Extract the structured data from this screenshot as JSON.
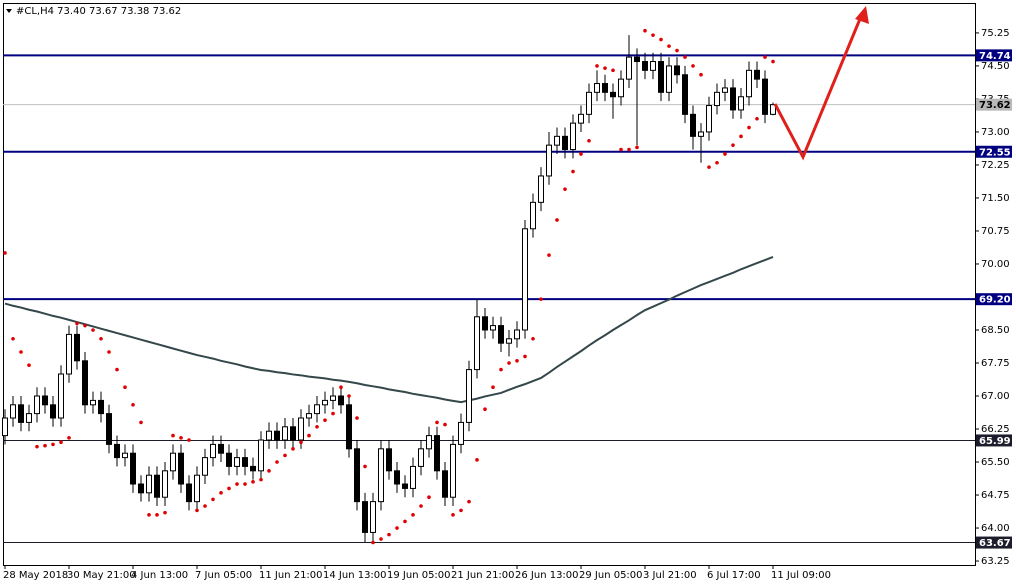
{
  "chart_data": {
    "type": "candlestick",
    "title": "#CL,H4 73.40 73.67 73.38 73.62",
    "categories": [
      "28 May 2018",
      null,
      null,
      null,
      null,
      null,
      null,
      null,
      "30 May 21:00",
      null,
      null,
      null,
      null,
      null,
      null,
      null,
      "4 Jun 13:00",
      null,
      null,
      null,
      null,
      null,
      null,
      null,
      "7 Jun 05:00",
      null,
      null,
      null,
      null,
      null,
      null,
      null,
      "11 Jun 21:00",
      null,
      null,
      null,
      null,
      null,
      null,
      null,
      "14 Jun 13:00",
      null,
      null,
      null,
      null,
      null,
      null,
      null,
      "19 Jun 05:00",
      null,
      null,
      null,
      null,
      null,
      null,
      null,
      "21 Jun 21:00",
      null,
      null,
      null,
      null,
      null,
      null,
      null,
      "26 Jun 13:00",
      null,
      null,
      null,
      null,
      null,
      null,
      null,
      "29 Jun 05:00",
      null,
      null,
      null,
      null,
      null,
      null,
      null,
      "3 Jul 21:00",
      null,
      null,
      null,
      null,
      null,
      null,
      null,
      "6 Jul 17:00",
      null,
      null,
      null,
      null,
      null,
      null,
      null,
      "11 Jul 09:00"
    ],
    "open": [
      66.1,
      66.5,
      66.8,
      66.4,
      66.6,
      67.0,
      66.8,
      66.5,
      67.5,
      68.4,
      67.8,
      66.8,
      66.9,
      66.6,
      65.9,
      65.6,
      65.7,
      65.0,
      64.8,
      65.2,
      64.7,
      65.3,
      65.7,
      65.0,
      64.6,
      65.2,
      65.6,
      65.9,
      65.7,
      65.4,
      65.6,
      65.4,
      65.3,
      66.0,
      66.2,
      66.0,
      66.3,
      66.0,
      66.5,
      66.6,
      66.8,
      66.9,
      67.0,
      66.8,
      65.8,
      64.6,
      63.9,
      64.6,
      65.8,
      65.3,
      65.0,
      64.9,
      65.4,
      65.8,
      66.1,
      65.3,
      64.7,
      65.9,
      66.4,
      67.6,
      68.8,
      68.5,
      68.6,
      68.2,
      68.3,
      68.5,
      70.8,
      71.4,
      72.0,
      72.7,
      72.9,
      72.6,
      73.2,
      73.4,
      73.9,
      74.1,
      73.9,
      73.8,
      74.2,
      74.7,
      74.6,
      74.4,
      74.6,
      73.9,
      74.5,
      74.3,
      73.4,
      72.9,
      73.0,
      73.6,
      73.9,
      74.0,
      73.5,
      73.8,
      74.4,
      74.2,
      73.4
    ],
    "high": [
      66.7,
      67.0,
      67.0,
      66.8,
      67.2,
      67.2,
      67.0,
      67.7,
      68.6,
      68.6,
      68.0,
      67.1,
      67.1,
      66.8,
      66.1,
      65.9,
      65.9,
      65.2,
      65.4,
      65.4,
      65.5,
      65.9,
      65.9,
      65.2,
      65.4,
      65.8,
      66.1,
      66.1,
      65.9,
      65.8,
      65.8,
      65.6,
      66.2,
      66.4,
      66.4,
      66.5,
      66.5,
      66.7,
      66.8,
      67.0,
      67.1,
      67.2,
      67.2,
      67.0,
      66.0,
      64.8,
      64.8,
      66.0,
      66.0,
      65.5,
      65.2,
      65.6,
      66.0,
      66.3,
      66.3,
      65.5,
      66.1,
      66.6,
      67.8,
      69.2,
      69.0,
      68.8,
      68.8,
      68.5,
      68.7,
      71.0,
      71.6,
      72.2,
      73.0,
      73.1,
      73.1,
      73.4,
      73.6,
      74.1,
      74.4,
      74.3,
      74.1,
      74.4,
      75.2,
      74.9,
      74.8,
      74.8,
      74.8,
      74.7,
      74.7,
      74.5,
      73.6,
      73.2,
      73.8,
      74.1,
      74.2,
      74.2,
      74.0,
      74.6,
      74.6,
      74.4,
      73.67
    ],
    "low": [
      65.9,
      66.3,
      66.2,
      66.2,
      66.4,
      66.6,
      66.3,
      66.3,
      67.3,
      67.6,
      66.6,
      66.6,
      66.4,
      65.7,
      65.4,
      65.4,
      64.8,
      64.6,
      64.6,
      64.5,
      64.5,
      65.1,
      64.8,
      64.4,
      64.4,
      65.0,
      65.4,
      65.5,
      65.2,
      65.2,
      65.2,
      65.1,
      65.1,
      65.8,
      65.8,
      65.8,
      65.8,
      65.8,
      66.3,
      66.4,
      66.6,
      66.7,
      66.6,
      65.6,
      64.4,
      63.67,
      63.7,
      64.4,
      65.1,
      64.8,
      64.7,
      64.7,
      65.2,
      65.6,
      65.1,
      64.5,
      64.5,
      65.7,
      66.2,
      67.4,
      68.3,
      68.3,
      68.0,
      67.9,
      68.1,
      68.3,
      70.6,
      71.2,
      71.8,
      72.5,
      72.4,
      72.4,
      73.0,
      73.2,
      73.7,
      73.7,
      73.3,
      73.6,
      74.0,
      72.7,
      74.2,
      74.2,
      73.7,
      73.7,
      74.1,
      73.2,
      72.6,
      72.3,
      72.8,
      73.4,
      73.7,
      73.3,
      73.3,
      73.6,
      74.0,
      73.2,
      73.38
    ],
    "close": [
      66.5,
      66.8,
      66.4,
      66.6,
      67.0,
      66.8,
      66.5,
      67.5,
      68.4,
      67.8,
      66.8,
      66.9,
      66.6,
      65.9,
      65.6,
      65.7,
      65.0,
      64.8,
      65.2,
      64.7,
      65.3,
      65.7,
      65.0,
      64.6,
      65.2,
      65.6,
      65.9,
      65.7,
      65.4,
      65.6,
      65.4,
      65.3,
      66.0,
      66.2,
      66.0,
      66.3,
      66.0,
      66.5,
      66.6,
      66.8,
      66.9,
      67.0,
      66.8,
      65.8,
      64.6,
      63.9,
      64.6,
      65.8,
      65.3,
      65.0,
      64.9,
      65.4,
      65.8,
      66.1,
      65.3,
      64.7,
      65.9,
      66.4,
      67.6,
      68.8,
      68.5,
      68.6,
      68.2,
      68.3,
      68.5,
      70.8,
      71.4,
      72.0,
      72.7,
      72.9,
      72.6,
      73.2,
      73.4,
      73.9,
      74.1,
      73.9,
      73.8,
      74.2,
      74.7,
      74.6,
      74.4,
      74.6,
      73.9,
      74.5,
      74.3,
      73.4,
      72.9,
      73.0,
      73.6,
      73.9,
      74.0,
      73.5,
      73.8,
      74.4,
      74.2,
      73.4,
      73.62
    ],
    "up_color": "#ffffff",
    "down_color": "#000000",
    "ma_values": [
      69.1,
      69.05,
      69.01,
      68.96,
      68.92,
      68.87,
      68.82,
      68.78,
      68.73,
      68.68,
      68.63,
      68.58,
      68.53,
      68.48,
      68.43,
      68.38,
      68.33,
      68.28,
      68.23,
      68.18,
      68.13,
      68.08,
      68.03,
      67.98,
      67.93,
      67.89,
      67.85,
      67.8,
      67.76,
      67.72,
      67.67,
      67.63,
      67.59,
      67.57,
      67.54,
      67.52,
      67.49,
      67.47,
      67.44,
      67.42,
      67.4,
      67.37,
      67.35,
      67.32,
      67.29,
      67.25,
      67.22,
      67.19,
      67.15,
      67.12,
      67.09,
      67.05,
      67.02,
      66.99,
      66.96,
      66.92,
      66.89,
      66.86,
      66.9,
      66.94,
      66.99,
      67.03,
      67.07,
      67.14,
      67.21,
      67.27,
      67.34,
      67.41,
      67.53,
      67.66,
      67.78,
      67.9,
      68.02,
      68.15,
      68.27,
      68.38,
      68.5,
      68.61,
      68.72,
      68.84,
      68.95,
      69.03,
      69.11,
      69.19,
      69.28,
      69.36,
      69.44,
      69.52,
      69.59,
      69.66,
      69.73,
      69.8,
      69.88,
      69.95,
      70.02,
      70.09,
      70.16
    ],
    "ma_color": "#34474a",
    "sar_values": [
      70.25,
      68.3,
      68.0,
      67.7,
      65.85,
      65.87,
      65.9,
      65.95,
      66.05,
      68.65,
      68.6,
      68.5,
      68.3,
      68.0,
      67.6,
      67.2,
      66.8,
      66.4,
      64.3,
      64.3,
      64.35,
      66.1,
      66.05,
      66.0,
      64.4,
      64.5,
      64.65,
      64.8,
      64.9,
      65.0,
      65.0,
      65.05,
      65.1,
      65.3,
      65.5,
      65.65,
      65.8,
      65.95,
      66.1,
      66.3,
      66.45,
      66.6,
      67.2,
      67.0,
      66.5,
      65.4,
      63.67,
      63.75,
      63.85,
      64.0,
      64.15,
      64.3,
      64.5,
      64.7,
      66.4,
      66.35,
      64.3,
      64.4,
      64.6,
      65.55,
      66.7,
      67.2,
      67.6,
      67.75,
      67.8,
      67.9,
      68.3,
      69.2,
      70.2,
      71.0,
      71.7,
      72.1,
      72.5,
      72.8,
      74.5,
      74.45,
      74.4,
      72.6,
      72.6,
      72.65,
      75.3,
      75.2,
      75.1,
      74.95,
      74.85,
      74.7,
      74.5,
      74.3,
      72.2,
      72.3,
      72.5,
      72.7,
      72.9,
      73.1,
      73.3,
      74.7,
      74.6
    ],
    "sar_color": "#e00000",
    "levels": [
      74.74,
      72.55,
      {
        "value": 69.2,
        "label": "69.20"
      },
      65.99,
      63.67
    ],
    "level_colors": [
      "#000080",
      "#000080",
      "#000080",
      "#1c1c2c",
      "#1c1c2c"
    ],
    "current_price": 73.62,
    "ylim": [
      63.16,
      75.93
    ],
    "yticks": [
      63.25,
      {
        "value": 64.0,
        "label": "64.00"
      },
      64.75,
      {
        "value": 65.5,
        "label": "65.50"
      },
      66.25,
      {
        "value": 67.0,
        "label": "67.00"
      },
      67.75,
      {
        "value": 68.5,
        "label": "68.50"
      },
      {
        "value": 70.0,
        "label": "70.00"
      },
      70.75,
      {
        "value": 71.5,
        "label": "71.50"
      },
      72.25,
      {
        "value": 73.0,
        "label": "73.00"
      },
      {
        "value": 73.75,
        "label": "73.75"
      },
      {
        "value": 74.5,
        "label": "74.50"
      },
      75.25
    ],
    "grid": false
  }
}
